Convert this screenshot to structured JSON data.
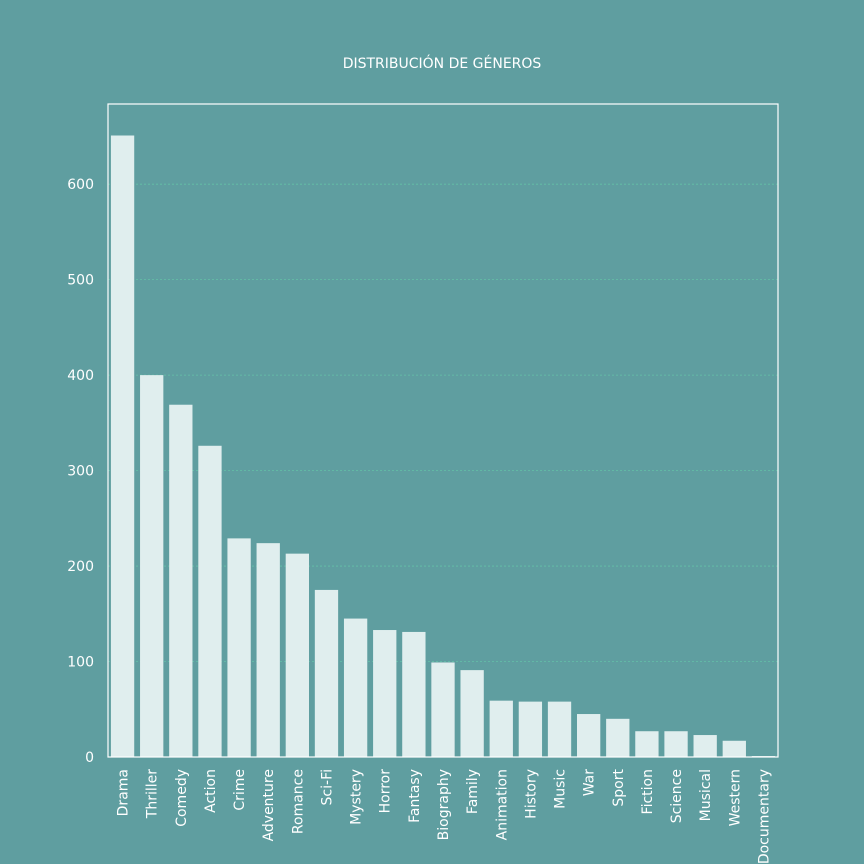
{
  "chart_data": {
    "type": "bar",
    "title": "DISTRIBUCIÓN DE GÉNEROS",
    "xlabel": "",
    "ylabel": "",
    "categories": [
      "Drama",
      "Thriller",
      "Comedy",
      "Action",
      "Crime",
      "Adventure",
      "Romance",
      "Sci-Fi",
      "Mystery",
      "Horror",
      "Fantasy",
      "Biography",
      "Family",
      "Animation",
      "History",
      "Music",
      "War",
      "Sport",
      "Fiction",
      "Science",
      "Musical",
      "Western",
      "Documentary"
    ],
    "values": [
      651,
      400,
      369,
      326,
      229,
      224,
      213,
      175,
      145,
      133,
      131,
      99,
      91,
      59,
      58,
      58,
      45,
      40,
      27,
      27,
      23,
      17,
      1
    ],
    "ylim": [
      0,
      684
    ],
    "yticks": [
      0,
      100,
      200,
      300,
      400,
      500,
      600
    ],
    "grid": true,
    "colors": {
      "background": "#5f9ea0",
      "bar": "#e0eeee",
      "grid": "#66cdaa",
      "text": "#ffffff"
    }
  }
}
